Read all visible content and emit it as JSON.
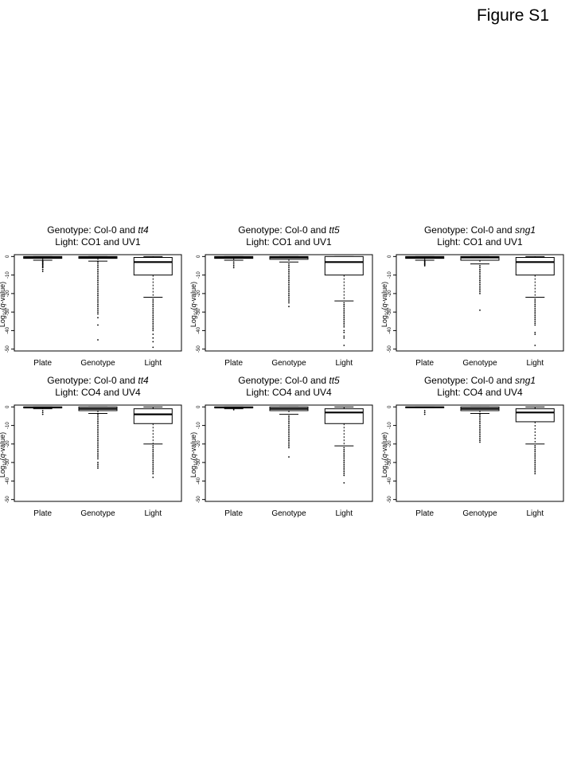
{
  "figure_label": "Figure S1",
  "chart_data": [
    {
      "type": "boxplot",
      "title_line1_prefix": "Genotype: Col-0 and ",
      "title_line1_italic": "tt4",
      "title_line2": "Light: CO1 and UV1",
      "ylabel_prefix": "Log",
      "ylabel_sub": "10",
      "ylabel_italic": "q",
      "ylabel_suffix": "-value)",
      "ylim": [
        -51,
        1
      ],
      "yticks": [
        0,
        -10,
        -20,
        -30,
        -40,
        -50
      ],
      "categories": [
        "Plate",
        "Genotype",
        "Light"
      ],
      "boxes": [
        {
          "category": "Plate",
          "whisker_low": -2,
          "q1": -1,
          "median": -0.5,
          "q3": 0,
          "whisker_high": 0,
          "outliers": [
            -2.5,
            -3,
            -3.5,
            -4,
            -4.5,
            -5,
            -5.5,
            -6,
            -7,
            -8
          ]
        },
        {
          "category": "Genotype",
          "whisker_low": -2.5,
          "q1": -1,
          "median": -0.5,
          "q3": 0,
          "whisker_high": 0,
          "outliers": [
            -3,
            -4,
            -5,
            -6,
            -7,
            -8,
            -9,
            -10,
            -11,
            -12,
            -13,
            -14,
            -15,
            -16,
            -17,
            -18,
            -19,
            -20,
            -21,
            -22,
            -23,
            -24,
            -25,
            -26,
            -27,
            -28,
            -29,
            -30,
            -31,
            -33,
            -37,
            -45
          ]
        },
        {
          "category": "Light",
          "whisker_low": -22,
          "q1": -10,
          "median": -3,
          "q3": -0.5,
          "whisker_high": 0,
          "outliers": [
            -23,
            -24,
            -25,
            -26,
            -27,
            -28,
            -29,
            -30,
            -31,
            -32,
            -33,
            -34,
            -35,
            -36,
            -37,
            -38,
            -39,
            -40,
            -42,
            -44,
            -46,
            -49
          ]
        }
      ]
    },
    {
      "type": "boxplot",
      "title_line1_prefix": "Genotype: Col-0 and ",
      "title_line1_italic": "tt5",
      "title_line2": "Light: CO1 and UV1",
      "ylabel_prefix": "Log",
      "ylabel_sub": "10",
      "ylabel_italic": "q",
      "ylabel_suffix": "-value)",
      "ylim": [
        -51,
        1
      ],
      "yticks": [
        0,
        -10,
        -20,
        -30,
        -40,
        -50
      ],
      "categories": [
        "Plate",
        "Genotype",
        "Light"
      ],
      "boxes": [
        {
          "category": "Plate",
          "whisker_low": -2,
          "q1": -1,
          "median": -0.5,
          "q3": 0,
          "whisker_high": 0,
          "outliers": [
            -3,
            -4,
            -5,
            -6
          ]
        },
        {
          "category": "Genotype",
          "whisker_low": -3,
          "q1": -1.5,
          "median": -0.5,
          "q3": 0,
          "whisker_high": 0,
          "outliers": [
            -4,
            -5,
            -6,
            -7,
            -8,
            -9,
            -10,
            -11,
            -12,
            -13,
            -14,
            -15,
            -16,
            -17,
            -18,
            -19,
            -20,
            -21,
            -22,
            -23,
            -24,
            -25,
            -27
          ]
        },
        {
          "category": "Light",
          "whisker_low": -24,
          "q1": -10,
          "median": -3,
          "q3": 0,
          "whisker_high": 0,
          "outliers": [
            -25,
            -26,
            -27,
            -28,
            -29,
            -30,
            -31,
            -32,
            -33,
            -34,
            -35,
            -36,
            -37,
            -38,
            -40,
            -41,
            -43,
            -44,
            -48
          ]
        }
      ]
    },
    {
      "type": "boxplot",
      "title_line1_prefix": "Genotype: Col-0 and ",
      "title_line1_italic": "sng1",
      "title_line2": "Light: CO1 and UV1",
      "ylabel_prefix": "Log",
      "ylabel_sub": "10",
      "ylabel_italic": "q",
      "ylabel_suffix": "-value)",
      "ylim": [
        -51,
        1
      ],
      "yticks": [
        0,
        -10,
        -20,
        -30,
        -40,
        -50
      ],
      "categories": [
        "Plate",
        "Genotype",
        "Light"
      ],
      "boxes": [
        {
          "category": "Plate",
          "whisker_low": -2,
          "q1": -1,
          "median": -0.5,
          "q3": 0,
          "whisker_high": 0,
          "outliers": [
            -2.5,
            -3,
            -3.5,
            -4,
            -4.5,
            -5
          ]
        },
        {
          "category": "Genotype",
          "whisker_low": -4,
          "q1": -2,
          "median": -0.5,
          "q3": 0,
          "whisker_high": 0,
          "outliers": [
            -5,
            -6,
            -7,
            -8,
            -9,
            -10,
            -11,
            -12,
            -13,
            -14,
            -15,
            -16,
            -17,
            -18,
            -19,
            -20,
            -29
          ]
        },
        {
          "category": "Light",
          "whisker_low": -22,
          "q1": -10,
          "median": -3,
          "q3": -0.5,
          "whisker_high": 0,
          "outliers": [
            -23,
            -24,
            -25,
            -26,
            -27,
            -28,
            -29,
            -30,
            -31,
            -32,
            -33,
            -34,
            -35,
            -36,
            -37,
            -41,
            -42,
            -48
          ]
        }
      ]
    },
    {
      "type": "boxplot",
      "title_line1_prefix": "Genotype: Col-0 and ",
      "title_line1_italic": "tt4",
      "title_line2": "Light: CO4 and UV4",
      "ylabel_prefix": "Log",
      "ylabel_sub": "10",
      "ylabel_italic": "q",
      "ylabel_suffix": "-value)",
      "ylim": [
        -51,
        1
      ],
      "yticks": [
        0,
        -10,
        -20,
        -30,
        -40,
        -50
      ],
      "categories": [
        "Plate",
        "Genotype",
        "Light"
      ],
      "boxes": [
        {
          "category": "Plate",
          "whisker_low": -1,
          "q1": -0.5,
          "median": -0.3,
          "q3": 0,
          "whisker_high": 0,
          "outliers": [
            -2,
            -3,
            -4
          ]
        },
        {
          "category": "Genotype",
          "whisker_low": -3.5,
          "q1": -2,
          "median": -1,
          "q3": 0,
          "whisker_high": 0,
          "outliers": [
            -4,
            -5,
            -6,
            -7,
            -8,
            -9,
            -10,
            -11,
            -12,
            -13,
            -14,
            -15,
            -16,
            -17,
            -18,
            -19,
            -20,
            -21,
            -22,
            -23,
            -24,
            -25,
            -26,
            -27,
            -28,
            -30,
            -31,
            -32,
            -33
          ]
        },
        {
          "category": "Light",
          "whisker_low": -20,
          "q1": -9,
          "median": -4,
          "q3": -1,
          "whisker_high": 0,
          "outliers": [
            -21,
            -22,
            -23,
            -24,
            -25,
            -26,
            -27,
            -28,
            -29,
            -30,
            -31,
            -32,
            -33,
            -34,
            -35,
            -36,
            -38
          ]
        }
      ]
    },
    {
      "type": "boxplot",
      "title_line1_prefix": "Genotype: Col-0 and ",
      "title_line1_italic": "tt5",
      "title_line2": "Light: CO4 and UV4",
      "ylabel_prefix": "Log",
      "ylabel_sub": "10",
      "ylabel_italic": "q",
      "ylabel_suffix": "-value)",
      "ylim": [
        -51,
        1
      ],
      "yticks": [
        0,
        -10,
        -20,
        -30,
        -40,
        -50
      ],
      "categories": [
        "Plate",
        "Genotype",
        "Light"
      ],
      "boxes": [
        {
          "category": "Plate",
          "whisker_low": -1,
          "q1": -0.5,
          "median": -0.3,
          "q3": 0,
          "whisker_high": 0,
          "outliers": [
            -1.5
          ]
        },
        {
          "category": "Genotype",
          "whisker_low": -4,
          "q1": -2,
          "median": -1,
          "q3": 0,
          "whisker_high": 0,
          "outliers": [
            -5,
            -6,
            -7,
            -8,
            -9,
            -10,
            -11,
            -12,
            -13,
            -14,
            -15,
            -16,
            -17,
            -18,
            -19,
            -20,
            -21,
            -22,
            -27
          ]
        },
        {
          "category": "Light",
          "whisker_low": -21,
          "q1": -9,
          "median": -3,
          "q3": -1,
          "whisker_high": 0,
          "outliers": [
            -22,
            -23,
            -24,
            -25,
            -26,
            -27,
            -28,
            -29,
            -30,
            -31,
            -32,
            -33,
            -34,
            -35,
            -36,
            -37,
            -41
          ]
        }
      ]
    },
    {
      "type": "boxplot",
      "title_line1_prefix": "Genotype: Col-0 and ",
      "title_line1_italic": "sng1",
      "title_line2": "Light: CO4 and UV4",
      "ylabel_prefix": "Log",
      "ylabel_sub": "10",
      "ylabel_italic": "q",
      "ylabel_suffix": "-value)",
      "ylim": [
        -51,
        1
      ],
      "yticks": [
        0,
        -10,
        -20,
        -30,
        -40,
        -50
      ],
      "categories": [
        "Plate",
        "Genotype",
        "Light"
      ],
      "boxes": [
        {
          "category": "Plate",
          "whisker_low": -0.5,
          "q1": -0.3,
          "median": -0.2,
          "q3": 0,
          "whisker_high": 0,
          "outliers": [
            -2,
            -3,
            -4
          ]
        },
        {
          "category": "Genotype",
          "whisker_low": -3.5,
          "q1": -2,
          "median": -1,
          "q3": 0,
          "whisker_high": 0,
          "outliers": [
            -4,
            -5,
            -6,
            -7,
            -8,
            -9,
            -10,
            -11,
            -12,
            -13,
            -14,
            -15,
            -16,
            -17,
            -18,
            -19
          ]
        },
        {
          "category": "Light",
          "whisker_low": -20,
          "q1": -8,
          "median": -3,
          "q3": -1,
          "whisker_high": 0,
          "outliers": [
            -21,
            -22,
            -23,
            -24,
            -25,
            -26,
            -27,
            -28,
            -29,
            -30,
            -31,
            -32,
            -33,
            -34,
            -35,
            -36
          ]
        }
      ]
    }
  ]
}
